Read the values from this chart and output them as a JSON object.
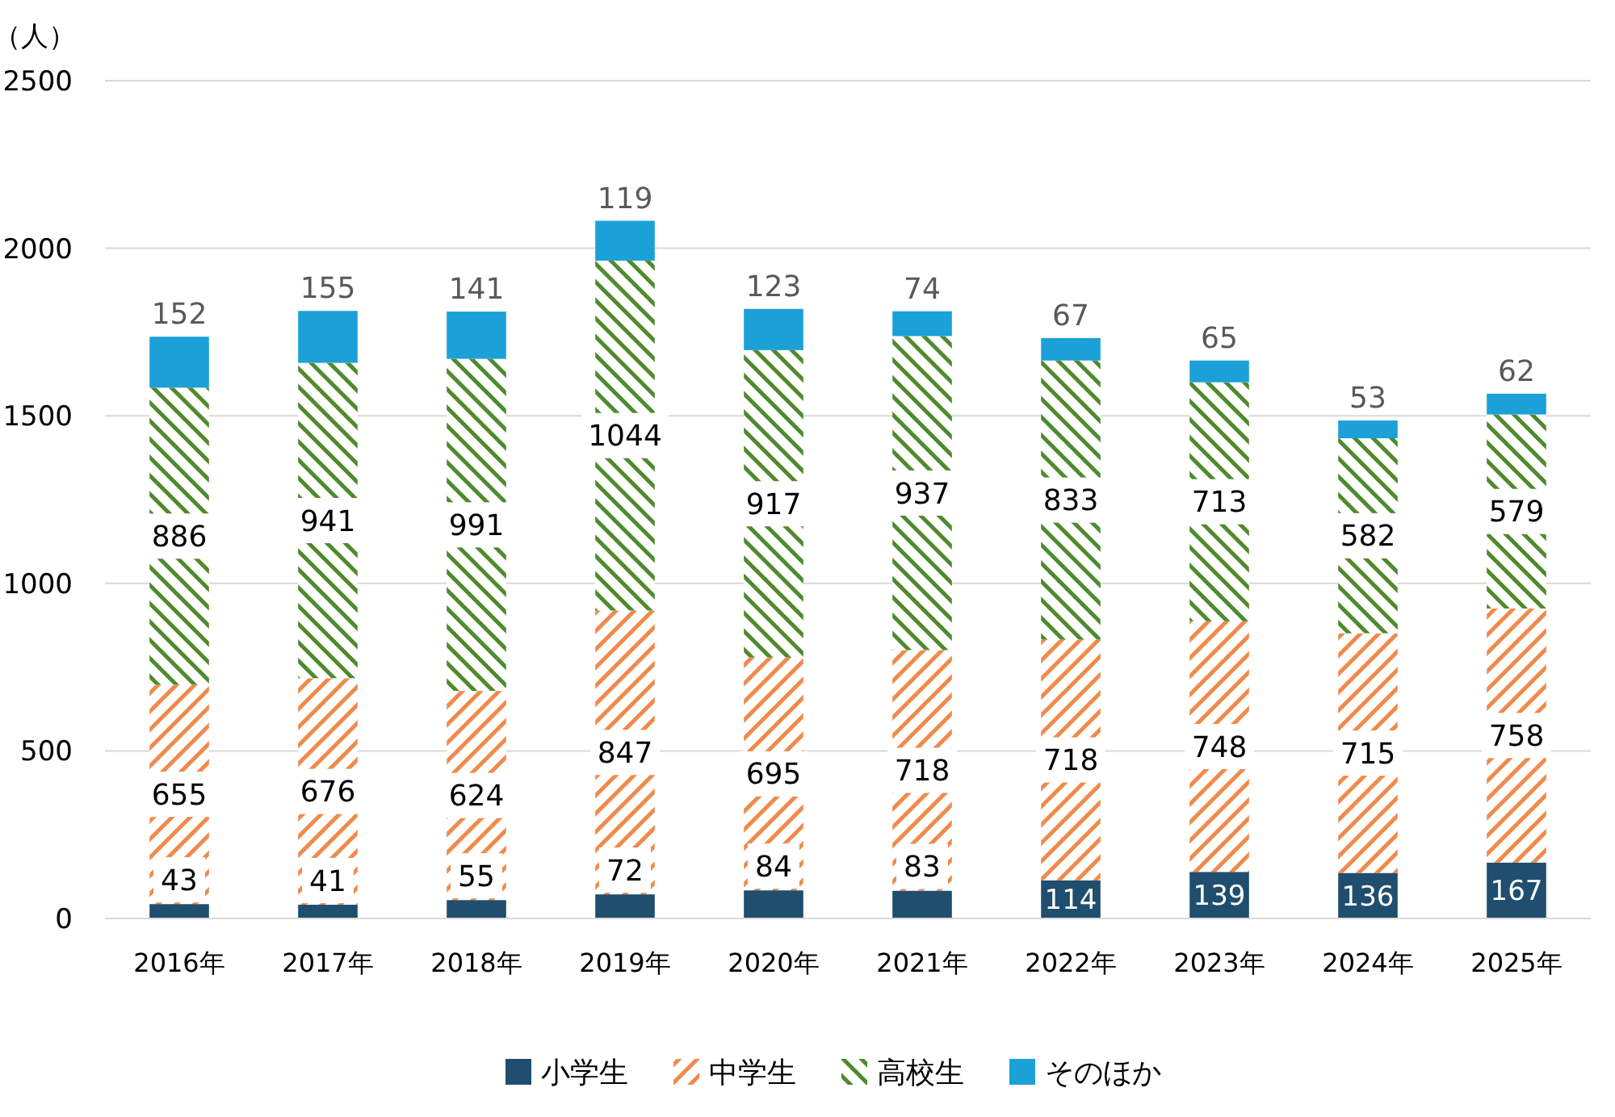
{
  "chart_data": {
    "type": "bar",
    "stacked": true,
    "ylabel": "（人）",
    "categories": [
      "2016年",
      "2017年",
      "2018年",
      "2019年",
      "2020年",
      "2021年",
      "2022年",
      "2023年",
      "2024年",
      "2025年"
    ],
    "series": [
      {
        "name": "小学生",
        "color": "#1f4e6e",
        "values": [
          43,
          41,
          55,
          72,
          84,
          83,
          114,
          139,
          136,
          167
        ]
      },
      {
        "name": "中学生",
        "color": "#f08a4b",
        "values": [
          655,
          676,
          624,
          847,
          695,
          718,
          718,
          748,
          715,
          758
        ]
      },
      {
        "name": "高校生",
        "color": "#4e8a2e",
        "values": [
          886,
          941,
          991,
          1044,
          917,
          937,
          833,
          713,
          582,
          579
        ]
      },
      {
        "name": "そのほか",
        "color": "#1ba1d8",
        "values": [
          152,
          155,
          141,
          119,
          123,
          74,
          67,
          65,
          53,
          62
        ]
      }
    ],
    "ylim": [
      0,
      2500
    ],
    "yticks": [
      0,
      500,
      1000,
      1500,
      2000,
      2500
    ],
    "grid": "y",
    "legend": "bottom",
    "data_labels": true
  }
}
